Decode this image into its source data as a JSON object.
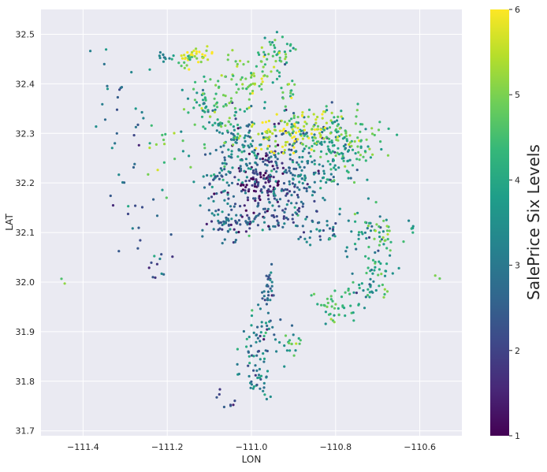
{
  "chart_data": {
    "type": "scatter",
    "title": "",
    "xlabel": "LON",
    "ylabel": "LAT",
    "xlim": [
      -111.5,
      -110.5
    ],
    "ylim": [
      31.69,
      32.55
    ],
    "x_ticks": [
      -111.4,
      -111.2,
      -111.0,
      -110.8,
      -110.6
    ],
    "x_tick_labels": [
      "−111.4",
      "−111.2",
      "−111.0",
      "−110.8",
      "−110.6"
    ],
    "y_ticks": [
      31.7,
      31.8,
      31.9,
      32.0,
      32.1,
      32.2,
      32.3,
      32.4,
      32.5
    ],
    "y_tick_labels": [
      "31.7",
      "31.8",
      "31.9",
      "32.0",
      "32.1",
      "32.2",
      "32.3",
      "32.4",
      "32.5"
    ],
    "grid": true,
    "background": "#eaeaf2",
    "colormap": "viridis",
    "colorbar": {
      "label": "SalePrice Six Levels",
      "range": [
        1,
        6
      ],
      "ticks": [
        1,
        2,
        3,
        4,
        5,
        6
      ],
      "tick_labels": [
        "1",
        "2",
        "3",
        "4",
        "5",
        "6"
      ]
    },
    "clusters": [
      {
        "lon": -110.98,
        "lat": 32.2,
        "spread": [
          0.03,
          0.03
        ],
        "level": 1.3,
        "n": 90
      },
      {
        "lon": -110.95,
        "lat": 32.23,
        "spread": [
          0.06,
          0.05
        ],
        "level": 2.2,
        "n": 120
      },
      {
        "lon": -110.88,
        "lat": 32.22,
        "spread": [
          0.05,
          0.045
        ],
        "level": 3.0,
        "n": 110
      },
      {
        "lon": -110.82,
        "lat": 32.26,
        "spread": [
          0.05,
          0.04
        ],
        "level": 3.6,
        "n": 100
      },
      {
        "lon": -110.93,
        "lat": 32.3,
        "spread": [
          0.04,
          0.02
        ],
        "level": 5.7,
        "n": 80
      },
      {
        "lon": -110.84,
        "lat": 32.31,
        "spread": [
          0.05,
          0.02
        ],
        "level": 5.0,
        "n": 70
      },
      {
        "lon": -110.76,
        "lat": 32.28,
        "spread": [
          0.04,
          0.03
        ],
        "level": 4.5,
        "n": 60
      },
      {
        "lon": -111.02,
        "lat": 32.27,
        "spread": [
          0.03,
          0.03
        ],
        "level": 3.3,
        "n": 70
      },
      {
        "lon": -111.06,
        "lat": 32.2,
        "spread": [
          0.03,
          0.04
        ],
        "level": 3.2,
        "n": 60
      },
      {
        "lon": -111.07,
        "lat": 32.34,
        "spread": [
          0.03,
          0.04
        ],
        "level": 4.3,
        "n": 60
      },
      {
        "lon": -111.0,
        "lat": 32.42,
        "spread": [
          0.03,
          0.03
        ],
        "level": 4.8,
        "n": 60
      },
      {
        "lon": -110.94,
        "lat": 32.45,
        "spread": [
          0.02,
          0.02
        ],
        "level": 4.2,
        "n": 40
      },
      {
        "lon": -111.05,
        "lat": 32.12,
        "spread": [
          0.03,
          0.02
        ],
        "level": 2.7,
        "n": 50
      },
      {
        "lon": -110.96,
        "lat": 32.13,
        "spread": [
          0.04,
          0.02
        ],
        "level": 2.4,
        "n": 60
      },
      {
        "lon": -110.83,
        "lat": 32.11,
        "spread": [
          0.04,
          0.015
        ],
        "level": 3.0,
        "n": 40
      },
      {
        "lon": -110.73,
        "lat": 32.09,
        "spread": [
          0.03,
          0.03
        ],
        "level": 3.8,
        "n": 40
      },
      {
        "lon": -110.69,
        "lat": 32.1,
        "spread": [
          0.02,
          0.02
        ],
        "level": 4.8,
        "n": 20
      },
      {
        "lon": -110.7,
        "lat": 32.02,
        "spread": [
          0.02,
          0.03
        ],
        "level": 4.2,
        "n": 30
      },
      {
        "lon": -110.8,
        "lat": 31.95,
        "spread": [
          0.03,
          0.02
        ],
        "level": 4.4,
        "n": 40
      },
      {
        "lon": -110.73,
        "lat": 31.98,
        "spread": [
          0.015,
          0.015
        ],
        "level": 3.4,
        "n": 20
      },
      {
        "lon": -110.96,
        "lat": 31.99,
        "spread": [
          0.01,
          0.02
        ],
        "level": 2.8,
        "n": 30
      },
      {
        "lon": -110.98,
        "lat": 31.88,
        "spread": [
          0.02,
          0.04
        ],
        "level": 3.0,
        "n": 60
      },
      {
        "lon": -110.99,
        "lat": 31.8,
        "spread": [
          0.02,
          0.02
        ],
        "level": 3.3,
        "n": 30
      },
      {
        "lon": -110.9,
        "lat": 31.88,
        "spread": [
          0.01,
          0.01
        ],
        "level": 4.5,
        "n": 15
      },
      {
        "lon": -111.15,
        "lat": 32.45,
        "spread": [
          0.02,
          0.01
        ],
        "level": 5.1,
        "n": 25
      },
      {
        "lon": -111.12,
        "lat": 32.46,
        "spread": [
          0.02,
          0.01
        ],
        "level": 5.9,
        "n": 20
      },
      {
        "lon": -111.1,
        "lat": 32.36,
        "spread": [
          0.03,
          0.02
        ],
        "level": 4.0,
        "n": 30
      },
      {
        "lon": -110.91,
        "lat": 32.38,
        "spread": [
          0.01,
          0.01
        ],
        "level": 4.6,
        "n": 15
      },
      {
        "lon": -111.3,
        "lat": 32.35,
        "spread": [
          0.04,
          0.06
        ],
        "level": 3.0,
        "n": 25
      },
      {
        "lon": -111.29,
        "lat": 32.13,
        "spread": [
          0.03,
          0.06
        ],
        "level": 2.7,
        "n": 20
      },
      {
        "lon": -111.2,
        "lat": 32.25,
        "spread": [
          0.03,
          0.04
        ],
        "level": 4.3,
        "n": 20
      },
      {
        "lon": -111.21,
        "lat": 32.45,
        "spread": [
          0.01,
          0.01
        ],
        "level": 3.1,
        "n": 10
      },
      {
        "lon": -111.22,
        "lat": 32.04,
        "spread": [
          0.02,
          0.02
        ],
        "level": 2.2,
        "n": 10
      },
      {
        "lon": -111.06,
        "lat": 31.76,
        "spread": [
          0.01,
          0.01
        ],
        "level": 2.1,
        "n": 8
      },
      {
        "lon": -110.62,
        "lat": 32.11,
        "spread": [
          0.01,
          0.01
        ],
        "level": 3.7,
        "n": 6
      },
      {
        "lon": -111.45,
        "lat": 32.0,
        "spread": [
          0.005,
          0.005
        ],
        "level": 5.0,
        "n": 2
      },
      {
        "lon": -110.56,
        "lat": 32.01,
        "spread": [
          0.005,
          0.005
        ],
        "level": 4.5,
        "n": 2
      }
    ]
  }
}
